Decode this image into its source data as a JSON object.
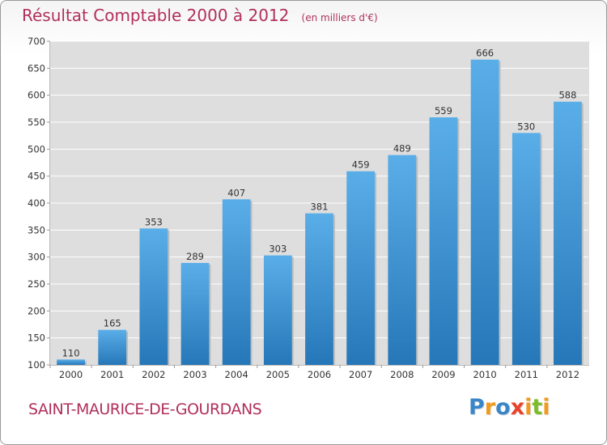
{
  "chart_data": {
    "type": "bar",
    "title": "Résultat Comptable 2000 à 2012",
    "subtitle": "(en milliers d'€)",
    "categories": [
      "2000",
      "2001",
      "2002",
      "2003",
      "2004",
      "2005",
      "2006",
      "2007",
      "2008",
      "2009",
      "2010",
      "2011",
      "2012"
    ],
    "values": [
      110,
      165,
      353,
      289,
      407,
      303,
      381,
      459,
      489,
      559,
      666,
      530,
      588
    ],
    "value_labels": [
      "110",
      "165",
      "353",
      "289",
      "407",
      "303",
      "381",
      "459",
      "489",
      "559",
      "666",
      "530",
      "588"
    ],
    "xlabel": "",
    "ylabel": "",
    "ylim": [
      100,
      700
    ],
    "yticks": [
      100,
      150,
      200,
      250,
      300,
      350,
      400,
      450,
      500,
      550,
      600,
      650,
      700
    ],
    "ytick_labels": [
      "100",
      "150",
      "200",
      "250",
      "300",
      "350",
      "400",
      "450",
      "500",
      "550",
      "600",
      "650",
      "700"
    ],
    "grid": true,
    "legend": "none"
  },
  "footer": {
    "location": "SAINT-MAURICE-DE-GOURDANS",
    "brand_letters": [
      "P",
      "r",
      "o",
      "x",
      "i",
      "t",
      "i"
    ]
  },
  "colors": {
    "title": "#b0305a",
    "bar_top": "#5aaee8",
    "bar_bottom": "#2677b8",
    "plot_bg": "#dedede",
    "grid": "#ffffff",
    "brand": [
      "#3a86c8",
      "#f29a1b",
      "#3a86c8",
      "#e8432b",
      "#f29a1b",
      "#7cbd2a",
      "#f29a1b"
    ]
  }
}
